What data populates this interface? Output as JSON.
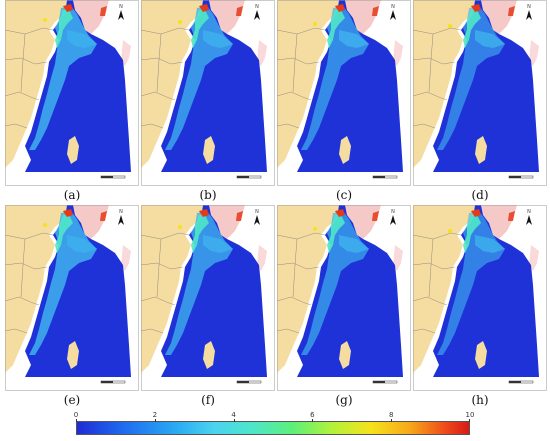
{
  "panels": [
    {
      "label": "(a)"
    },
    {
      "label": "(b)"
    },
    {
      "label": "(c)"
    },
    {
      "label": "(d)"
    },
    {
      "label": "(e)"
    },
    {
      "label": "(f)"
    },
    {
      "label": "(g)"
    },
    {
      "label": "(h)"
    }
  ],
  "north_symbol": "N",
  "colorbar": {
    "ticks": [
      "0",
      "2",
      "4",
      "6",
      "8",
      "10"
    ],
    "range": [
      0,
      10
    ]
  },
  "colors": {
    "land": "#f5dca0",
    "korea": "#f6c9c9",
    "sea_deep": "#1f32d8",
    "coast_mid": "#3fb2ee",
    "coast_high": "#4fe6c8",
    "hot": "#e43a18"
  }
}
